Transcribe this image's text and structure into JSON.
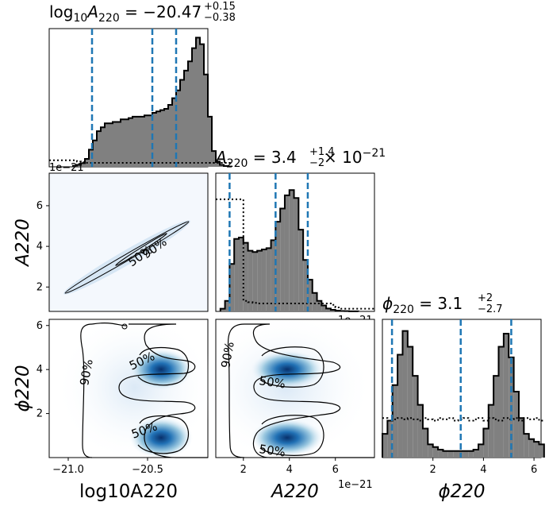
{
  "chart_data": {
    "type": "corner",
    "parameters": [
      "log10_A220",
      "A220",
      "phi220"
    ],
    "panels": [
      {
        "id": "hist-log10A220",
        "type": "histogram",
        "row": 0,
        "col": 0,
        "title": "log10A220 = -20.47 +0.15 -0.38",
        "title_parts": {
          "lhs_base": "log",
          "lhs_sub1": "10",
          "lhs_var": "A",
          "lhs_sub2": "220",
          "eq": " = −20.47",
          "sup": "+0.15",
          "sub": "−0.38"
        },
        "xlim": [
          -21.12,
          -20.12
        ],
        "ylim": [
          0,
          1.0
        ],
        "bin_edges_start": -20.97,
        "bin_width": 0.025,
        "counts": [
          0.008,
          0.015,
          0.028,
          0.06,
          0.13,
          0.2,
          0.27,
          0.3,
          0.33,
          0.33,
          0.34,
          0.34,
          0.36,
          0.36,
          0.37,
          0.38,
          0.38,
          0.38,
          0.39,
          0.39,
          0.41,
          0.42,
          0.43,
          0.44,
          0.47,
          0.52,
          0.58,
          0.66,
          0.73,
          0.8,
          0.9,
          0.98,
          0.93,
          0.7,
          0.38,
          0.12,
          0.04,
          0.015,
          0.006,
          0.002
        ],
        "prior_line": [
          0.05,
          0.04,
          0.035,
          0.03,
          0.03,
          0.03,
          0.03,
          0.03,
          0.03,
          0.03,
          0.03,
          0.03,
          0.03,
          0.03,
          0.03,
          0.03,
          0.03,
          0.03,
          0.03,
          0.03,
          0.03,
          0.03,
          0.03,
          0.03,
          0.03,
          0.03,
          0.03,
          0.03,
          0.03,
          0.03,
          0.03,
          0.03,
          0.03,
          0.03,
          0.03,
          0.03,
          0.03,
          0.03,
          0.03,
          0.03
        ],
        "quantiles": [
          -20.85,
          -20.47,
          -20.32
        ],
        "offset_label": "1e−21"
      },
      {
        "id": "hist-A220",
        "type": "histogram",
        "row": 1,
        "col": 1,
        "title_parts": {
          "lhs_var": "A",
          "lhs_sub2": "220",
          "eq": " = 3.4",
          "sup": "+1.4",
          "sub": "−2",
          "times": " × 10",
          "exp": "−21"
        },
        "xlim": [
          0.8,
          7.7
        ],
        "ylim": [
          0,
          1.0
        ],
        "bin_edges_start": 1.0,
        "bin_width": 0.2,
        "counts": [
          0.02,
          0.08,
          0.36,
          0.55,
          0.56,
          0.52,
          0.46,
          0.45,
          0.46,
          0.47,
          0.48,
          0.54,
          0.68,
          0.78,
          0.88,
          0.92,
          0.86,
          0.62,
          0.39,
          0.24,
          0.14,
          0.08,
          0.045,
          0.022,
          0.012,
          0.006,
          0.003,
          0.002,
          0.001,
          0.001
        ],
        "prior_line": [
          0.85,
          0.85,
          0.85,
          0.85,
          0.85,
          0.08,
          0.07,
          0.065,
          0.06,
          0.06,
          0.06,
          0.06,
          0.06,
          0.06,
          0.06,
          0.06,
          0.06,
          0.06,
          0.06,
          0.06,
          0.06,
          0.06,
          0.06,
          0.06,
          0.05,
          0.03,
          0.02,
          0.02,
          0.02,
          0.02
        ],
        "quantiles": [
          1.4,
          3.4,
          4.8
        ],
        "offset_label": "1e−21"
      },
      {
        "id": "hist-phi220",
        "type": "histogram",
        "row": 2,
        "col": 2,
        "title_parts": {
          "lhs_var": "ϕ",
          "lhs_sub2": "220",
          "eq": " = 3.1",
          "sup": "+2",
          "sub": "−2.7"
        },
        "xlim": [
          0,
          6.28
        ],
        "ylim": [
          0,
          1.0
        ],
        "bin_edges_start": 0,
        "bin_width": 0.2,
        "counts": [
          0.18,
          0.28,
          0.55,
          0.78,
          0.96,
          0.84,
          0.62,
          0.4,
          0.22,
          0.1,
          0.08,
          0.06,
          0.05,
          0.05,
          0.05,
          0.05,
          0.05,
          0.05,
          0.06,
          0.1,
          0.22,
          0.4,
          0.62,
          0.84,
          0.94,
          0.76,
          0.5,
          0.3,
          0.18,
          0.14,
          0.12,
          0.1
        ],
        "prior_line": [
          0.3,
          0.28,
          0.29,
          0.3,
          0.29,
          0.3,
          0.29,
          0.28,
          0.3,
          0.29,
          0.28,
          0.3,
          0.29,
          0.3,
          0.28,
          0.29,
          0.3,
          0.28,
          0.29,
          0.3,
          0.28,
          0.3,
          0.29,
          0.28,
          0.3,
          0.29,
          0.3,
          0.28,
          0.3,
          0.29,
          0.3,
          0.28
        ],
        "quantiles": [
          0.38,
          3.1,
          5.1
        ]
      },
      {
        "id": "kde-A220-vs-log10A220",
        "type": "contour",
        "row": 1,
        "col": 0,
        "xlim": [
          -21.12,
          -20.12
        ],
        "ylim": [
          0.8,
          7.6
        ],
        "contour_labels": [
          "50%",
          "90%"
        ]
      },
      {
        "id": "kde-phi220-vs-log10A220",
        "type": "contour",
        "row": 2,
        "col": 0,
        "xlim": [
          -21.12,
          -20.12
        ],
        "ylim": [
          0,
          6.28
        ],
        "modes": [
          {
            "x": -20.4,
            "y": 3.95
          },
          {
            "x": -20.4,
            "y": 0.85
          }
        ],
        "contour_labels": [
          "50%",
          "50%",
          "90%"
        ]
      },
      {
        "id": "kde-phi220-vs-A220",
        "type": "contour",
        "row": 2,
        "col": 1,
        "xlim": [
          0.8,
          7.7
        ],
        "ylim": [
          0,
          6.28
        ],
        "modes": [
          {
            "x": 3.9,
            "y": 3.95
          },
          {
            "x": 3.9,
            "y": 0.85
          }
        ],
        "contour_labels": [
          "50%",
          "50%",
          "90%"
        ]
      }
    ],
    "x_ticks": {
      "log10_A220": [
        "−21.0",
        "−20.5"
      ],
      "A220": [
        "2",
        "4",
        "6"
      ],
      "phi220": [
        "2",
        "4",
        "6"
      ]
    },
    "x_tick_values": {
      "log10_A220": [
        -21.0,
        -20.5
      ],
      "A220": [
        2,
        4,
        6
      ],
      "phi220": [
        2,
        4,
        6
      ]
    },
    "y_ticks": {
      "A220": [
        "2",
        "4",
        "6"
      ],
      "phi220": [
        "2",
        "4",
        "6"
      ]
    },
    "y_tick_values": {
      "A220": [
        2,
        4,
        6
      ],
      "phi220": [
        2,
        4,
        6
      ]
    },
    "x_axis_labels": [
      "log10A220",
      "A220",
      "ϕ220"
    ],
    "y_axis_labels": [
      "A220",
      "ϕ220"
    ],
    "colors": {
      "hist_fill": "#808080",
      "quantile": "#1f77b4",
      "kde_dark": "#08306b",
      "kde_mid": "#2171b5",
      "kde_light": "#c6dbef"
    }
  }
}
